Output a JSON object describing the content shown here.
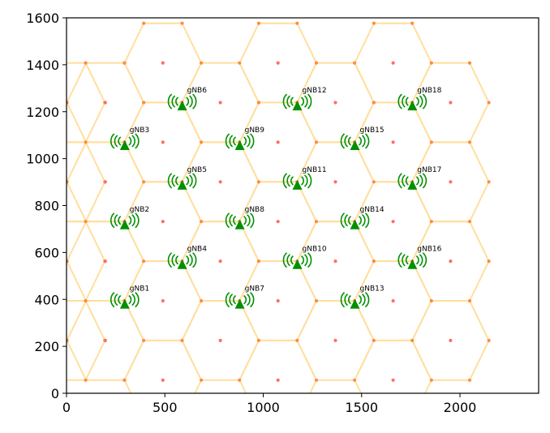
{
  "chart_data": {
    "type": "scatter",
    "title": "",
    "xlabel": "",
    "ylabel": "",
    "xlim": [
      0,
      2400
    ],
    "ylim": [
      0,
      1600
    ],
    "xticks": [
      0,
      500,
      1000,
      1500,
      2000
    ],
    "yticks": [
      0,
      200,
      400,
      600,
      800,
      1000,
      1200,
      1400,
      1600
    ],
    "grid": false,
    "hex_radius": 195,
    "hex_spacing": {
      "dx": 292.5,
      "dy": 337.8
    },
    "hex_color": "#ffdf9e",
    "center_color": "#ff6f5e",
    "station_color": "#009000",
    "hex_centers": [
      [
        0,
        225
      ],
      [
        0,
        563
      ],
      [
        0,
        901
      ],
      [
        0,
        1239
      ],
      [
        197,
        225
      ],
      [
        197,
        563
      ],
      [
        197,
        901
      ],
      [
        197,
        1239
      ],
      [
        490,
        56
      ],
      [
        490,
        394
      ],
      [
        490,
        732
      ],
      [
        490,
        1070
      ],
      [
        490,
        1408
      ],
      [
        782,
        225
      ],
      [
        782,
        563
      ],
      [
        782,
        901
      ],
      [
        782,
        1239
      ],
      [
        1075,
        56
      ],
      [
        1075,
        394
      ],
      [
        1075,
        732
      ],
      [
        1075,
        1070
      ],
      [
        1075,
        1408
      ],
      [
        1367,
        225
      ],
      [
        1367,
        563
      ],
      [
        1367,
        901
      ],
      [
        1367,
        1239
      ],
      [
        1660,
        56
      ],
      [
        1660,
        394
      ],
      [
        1660,
        732
      ],
      [
        1660,
        1070
      ],
      [
        1660,
        1408
      ],
      [
        1952,
        225
      ],
      [
        1952,
        563
      ],
      [
        1952,
        901
      ],
      [
        1952,
        1239
      ]
    ],
    "stations": [
      {
        "label": "gNB1",
        "x": 296,
        "y": 385
      },
      {
        "label": "gNB2",
        "x": 296,
        "y": 723
      },
      {
        "label": "gNB3",
        "x": 296,
        "y": 1061
      },
      {
        "label": "gNB4",
        "x": 588,
        "y": 554
      },
      {
        "label": "gNB5",
        "x": 588,
        "y": 892
      },
      {
        "label": "gNB6",
        "x": 588,
        "y": 1230
      },
      {
        "label": "gNB7",
        "x": 881,
        "y": 385
      },
      {
        "label": "gNB8",
        "x": 881,
        "y": 723
      },
      {
        "label": "gNB9",
        "x": 881,
        "y": 1061
      },
      {
        "label": "gNB10",
        "x": 1173,
        "y": 554
      },
      {
        "label": "gNB11",
        "x": 1173,
        "y": 892
      },
      {
        "label": "gNB12",
        "x": 1173,
        "y": 1230
      },
      {
        "label": "gNB13",
        "x": 1466,
        "y": 385
      },
      {
        "label": "gNB14",
        "x": 1466,
        "y": 723
      },
      {
        "label": "gNB15",
        "x": 1466,
        "y": 1061
      },
      {
        "label": "gNB16",
        "x": 1758,
        "y": 554
      },
      {
        "label": "gNB17",
        "x": 1758,
        "y": 892
      },
      {
        "label": "gNB18",
        "x": 1758,
        "y": 1230
      }
    ]
  }
}
